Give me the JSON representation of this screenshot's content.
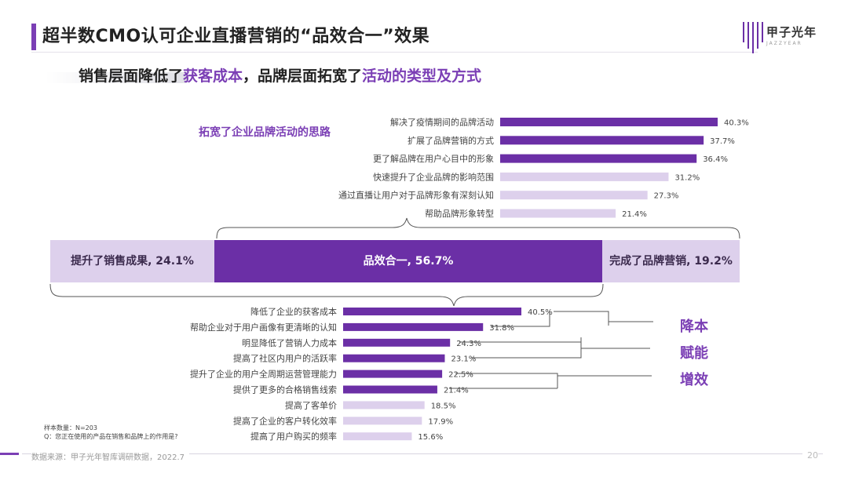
{
  "title": "超半数CMO认可企业直播营销的“品效合一”效果",
  "logo": {
    "name": "甲子光年",
    "sub": "JAZZYEAR"
  },
  "subtitle": {
    "part1": "销售层面降低了",
    "hl1": "获客成本",
    "part2": "，品牌层面拓宽了",
    "hl2": "活动的类型及方式"
  },
  "top_heading": "拓宽了企业品牌活动的思路",
  "bands": {
    "left": "提升了销售成果, 24.1%",
    "middle": "品效合一, 56.7%",
    "right": "完成了品牌营销, 19.2%"
  },
  "right_labels": [
    "降本",
    "赋能",
    "增效"
  ],
  "footer": {
    "sample": "样本数量：N=203",
    "question": "Q：您正在使用的产品在销售和品牌上的作用是?",
    "source": "数据来源：甲子光年智库调研数据，2022.7",
    "page": "20"
  },
  "colors": {
    "dark": "#6b2fa6",
    "light": "#ddd0ec",
    "accent": "#7b3fb5"
  },
  "chart_data": [
    {
      "type": "bar",
      "orientation": "horizontal",
      "categories": [
        "解决了疫情期间的品牌活动",
        "扩展了品牌营销的方式",
        "更了解品牌在用户心目中的形象",
        "快速提升了企业品牌的影响范围",
        "通过直播让用户对于品牌形象有深刻认知",
        "帮助品牌形象转型"
      ],
      "values": [
        40.3,
        37.7,
        36.4,
        31.2,
        27.3,
        21.4
      ],
      "labels": [
        "40.3%",
        "37.7%",
        "36.4%",
        "31.2%",
        "27.3%",
        "21.4%"
      ],
      "dark_count": 3
    },
    {
      "type": "bar",
      "orientation": "horizontal",
      "categories": [
        "降低了企业的获客成本",
        "帮助企业对于用户画像有更清晰的认知",
        "明显降低了营销人力成本",
        "提高了社区内用户的活跃率",
        "提升了企业的用户全周期运营管理能力",
        "提供了更多的合格销售线索",
        "提高了客单价",
        "提高了企业的客户转化效率",
        "提高了用户购买的频率"
      ],
      "values": [
        40.5,
        31.8,
        24.3,
        23.1,
        22.5,
        21.4,
        18.5,
        17.9,
        15.6
      ],
      "labels": [
        "40.5%",
        "31.8%",
        "24.3%",
        "23.1%",
        "22.5%",
        "21.4%",
        "18.5%",
        "17.9%",
        "15.6%"
      ],
      "dark_count": 6
    }
  ]
}
